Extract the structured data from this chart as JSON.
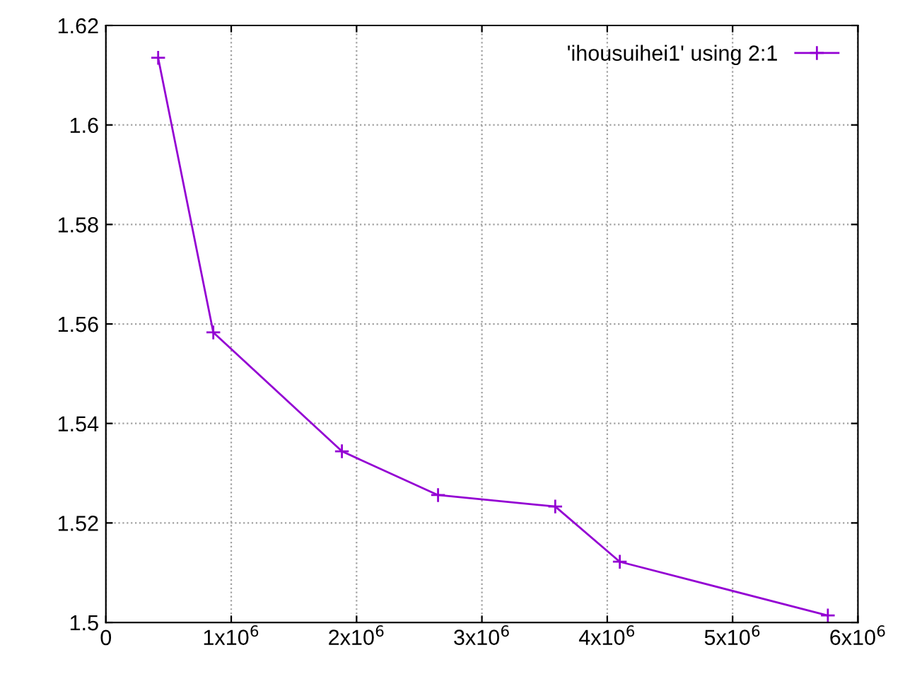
{
  "chart_data": {
    "type": "line",
    "x": [
      417000,
      857000,
      1883000,
      2650000,
      3585000,
      4100000,
      5760000
    ],
    "series": [
      {
        "name": "'ihousuihei1' using 2:1",
        "color": "#9400d3",
        "values": [
          1.6135,
          1.5583,
          1.5344,
          1.5256,
          1.5233,
          1.5122,
          1.5014
        ]
      }
    ],
    "xlim": [
      0,
      6000000
    ],
    "ylim": [
      1.5,
      1.62
    ],
    "xticks": [
      0,
      {
        "value": 1000000,
        "label": "1x10$^{6}$"
      },
      {
        "value": 2000000,
        "label": "2x10$^{6}$"
      },
      {
        "value": 3000000,
        "label": "3x10$^{6}$"
      },
      {
        "value": 4000000,
        "label": "4x10$^{6}$"
      },
      {
        "value": 5000000,
        "label": "5x10$^{6}$"
      },
      {
        "value": 6000000,
        "label": "6x10$^{6}$"
      }
    ],
    "yticks": [
      1.5,
      1.52,
      1.54,
      1.56,
      1.58,
      1.6,
      1.62
    ],
    "grid": true,
    "legend": "top right",
    "marker": "cross",
    "line_style": "solid"
  }
}
